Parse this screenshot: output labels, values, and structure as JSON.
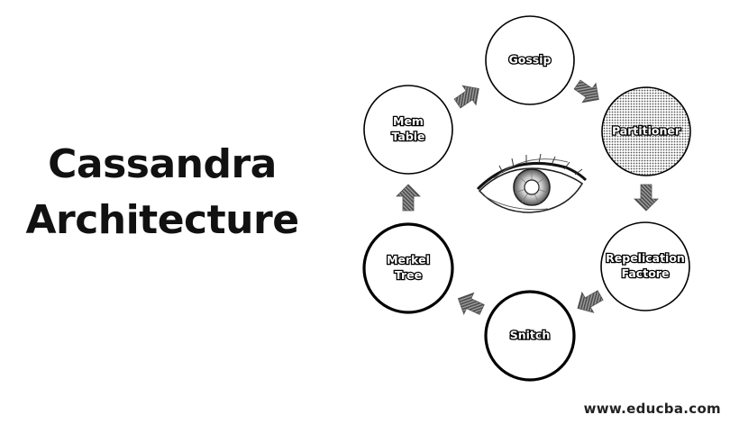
{
  "title": {
    "line1": "Cassandra",
    "line2": "Architecture"
  },
  "nodes": [
    {
      "id": "gossip",
      "label_lines": [
        "Gossip"
      ],
      "style": "plain"
    },
    {
      "id": "partitioner",
      "label_lines": [
        "Partitioner"
      ],
      "style": "dotted"
    },
    {
      "id": "replication-factor",
      "label_lines": [
        "Repelication",
        "Factore"
      ],
      "style": "plain"
    },
    {
      "id": "snitch",
      "label_lines": [
        "Snitch"
      ],
      "style": "bold"
    },
    {
      "id": "merkel-tree",
      "label_lines": [
        "Merkel",
        "Tree"
      ],
      "style": "bold"
    },
    {
      "id": "mem-table",
      "label_lines": [
        "Mem",
        "Table"
      ],
      "style": "plain"
    }
  ],
  "watermark": "www.educba.com",
  "icons": {
    "center": "eye-icon",
    "connector": "arrow-icon"
  }
}
